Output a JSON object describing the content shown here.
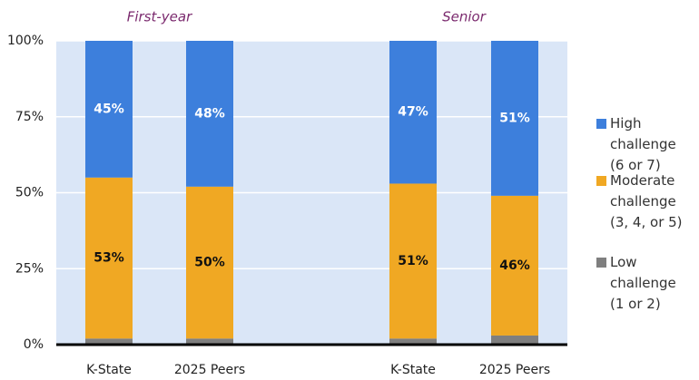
{
  "chart_data": {
    "type": "stacked_bar",
    "groups": [
      {
        "name": "First-year",
        "categories": [
          "K-State",
          "2025 Peers"
        ]
      },
      {
        "name": "Senior",
        "categories": [
          "K-State",
          "2025 Peers"
        ]
      }
    ],
    "series": [
      {
        "name": "Low challenge (1 or 2)",
        "color": "#7f7f7f",
        "values": [
          2,
          2,
          2,
          3
        ]
      },
      {
        "name": "Moderate challenge (3, 4, or 5)",
        "color": "#f0a823",
        "values": [
          53,
          50,
          51,
          46
        ],
        "value_labels": [
          "53%",
          "50%",
          "51%",
          "46%"
        ]
      },
      {
        "name": "High challenge (6 or 7)",
        "color": "#3d7fdc",
        "values": [
          45,
          48,
          47,
          51
        ],
        "value_labels": [
          "45%",
          "48%",
          "47%",
          "51%"
        ]
      }
    ],
    "ylim": [
      0,
      100
    ],
    "yticks": [
      {
        "value": 0,
        "label": "0%"
      },
      {
        "value": 25,
        "label": "25%"
      },
      {
        "value": 50,
        "label": "50%"
      },
      {
        "value": 75,
        "label": "75%"
      },
      {
        "value": 100,
        "label": "100%"
      }
    ],
    "grid": true
  }
}
